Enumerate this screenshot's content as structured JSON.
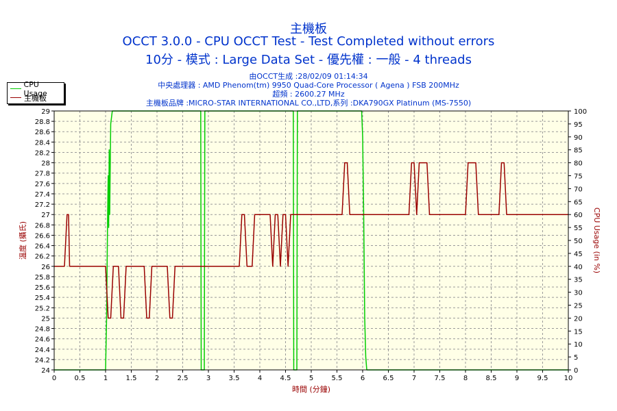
{
  "chart_data": {
    "type": "line",
    "title": "主機板",
    "subtitle_lines": [
      "OCCT 3.0.0 - CPU OCCT Test - Test Completed without errors",
      "10分 - 模式 : Large Data Set - 優先權 : 一般 - 4 threads"
    ],
    "info_lines": [
      "由OCCT生成 :28/02/09 01:14:34",
      "中央處理器 : AMD Phenom(tm) 9950 Quad-Core Processor ( Agena ) FSB 200MHz",
      "超頻 : 2600.27 MHz",
      "主機板品牌 :MICRO-STAR INTERNATIONAL CO.,LTD,系列 :DKA790GX Platinum (MS-7550)"
    ],
    "xlabel": "時間 (分鐘)",
    "ylabel_left": "溫度 (攝氏)",
    "ylabel_right": "CPU Usage (in %)",
    "xlim": [
      0,
      10
    ],
    "ylim_left": [
      24,
      29
    ],
    "ylim_right": [
      0,
      100
    ],
    "x_ticks": [
      "0",
      "0.5",
      "1",
      "1.5",
      "2",
      "2.5",
      "3",
      "3.5",
      "4",
      "4.5",
      "5",
      "5.5",
      "6",
      "6.5",
      "7",
      "7.5",
      "8",
      "8.5",
      "9",
      "9.5",
      "10"
    ],
    "y_left_ticks": [
      "24",
      "24.2",
      "24.4",
      "24.6",
      "24.8",
      "25",
      "25.2",
      "25.4",
      "25.6",
      "25.8",
      "26",
      "26.2",
      "26.4",
      "26.6",
      "26.8",
      "27",
      "27.2",
      "27.4",
      "27.6",
      "27.8",
      "28",
      "28.2",
      "28.4",
      "28.6",
      "28.8",
      "29"
    ],
    "y_right_ticks": [
      "0",
      "5",
      "10",
      "15",
      "20",
      "25",
      "30",
      "35",
      "40",
      "45",
      "50",
      "55",
      "60",
      "65",
      "70",
      "75",
      "80",
      "85",
      "90",
      "95",
      "100"
    ],
    "grid": true,
    "legend_position": "top-left",
    "series": [
      {
        "name": "CPU Usage",
        "axis": "right",
        "color": "#00cc00",
        "points": [
          [
            0,
            0
          ],
          [
            0.98,
            0
          ],
          [
            1.0,
            0
          ],
          [
            1.02,
            20
          ],
          [
            1.04,
            60
          ],
          [
            1.05,
            75
          ],
          [
            1.06,
            55
          ],
          [
            1.07,
            85
          ],
          [
            1.08,
            60
          ],
          [
            1.1,
            95
          ],
          [
            1.13,
            100
          ],
          [
            2.85,
            100
          ],
          [
            2.86,
            0
          ],
          [
            2.92,
            0
          ],
          [
            2.93,
            100
          ],
          [
            4.65,
            100
          ],
          [
            4.66,
            0
          ],
          [
            4.72,
            0
          ],
          [
            4.73,
            100
          ],
          [
            5.98,
            100
          ],
          [
            6.0,
            90
          ],
          [
            6.02,
            60
          ],
          [
            6.04,
            20
          ],
          [
            6.06,
            5
          ],
          [
            6.08,
            0
          ],
          [
            10,
            0
          ]
        ]
      },
      {
        "name": "主機板",
        "axis": "left",
        "color": "#990000",
        "points": [
          [
            0,
            26
          ],
          [
            0.2,
            26
          ],
          [
            0.25,
            27
          ],
          [
            0.28,
            27
          ],
          [
            0.3,
            26
          ],
          [
            1.0,
            26
          ],
          [
            1.05,
            25
          ],
          [
            1.1,
            25
          ],
          [
            1.15,
            26
          ],
          [
            1.25,
            26
          ],
          [
            1.3,
            25
          ],
          [
            1.35,
            25
          ],
          [
            1.4,
            26
          ],
          [
            1.75,
            26
          ],
          [
            1.8,
            25
          ],
          [
            1.85,
            25
          ],
          [
            1.9,
            26
          ],
          [
            2.2,
            26
          ],
          [
            2.25,
            25
          ],
          [
            2.3,
            25
          ],
          [
            2.35,
            26
          ],
          [
            3.6,
            26
          ],
          [
            3.65,
            27
          ],
          [
            3.7,
            27
          ],
          [
            3.75,
            26
          ],
          [
            3.85,
            26
          ],
          [
            3.9,
            27
          ],
          [
            4.2,
            27
          ],
          [
            4.25,
            26
          ],
          [
            4.3,
            27
          ],
          [
            4.35,
            27
          ],
          [
            4.4,
            26
          ],
          [
            4.45,
            27
          ],
          [
            4.5,
            27
          ],
          [
            4.55,
            26
          ],
          [
            4.6,
            27
          ],
          [
            5.6,
            27
          ],
          [
            5.65,
            28
          ],
          [
            5.7,
            28
          ],
          [
            5.75,
            27
          ],
          [
            6.9,
            27
          ],
          [
            6.95,
            28
          ],
          [
            7.0,
            28
          ],
          [
            7.05,
            27
          ],
          [
            7.1,
            28
          ],
          [
            7.25,
            28
          ],
          [
            7.3,
            27
          ],
          [
            8.0,
            27
          ],
          [
            8.05,
            28
          ],
          [
            8.2,
            28
          ],
          [
            8.25,
            27
          ],
          [
            8.65,
            27
          ],
          [
            8.7,
            28
          ],
          [
            8.75,
            28
          ],
          [
            8.8,
            27
          ],
          [
            10,
            27
          ]
        ]
      }
    ]
  }
}
